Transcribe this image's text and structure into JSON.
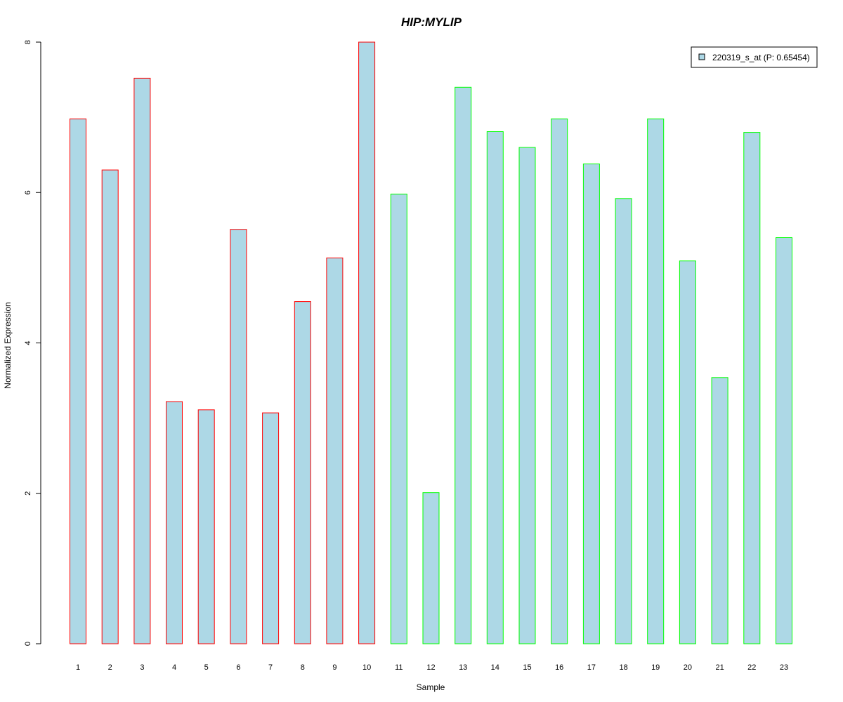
{
  "chart_data": {
    "type": "bar",
    "title": "HIP:MYLIP",
    "xlabel": "Sample",
    "ylabel": "Normalized Expression",
    "ylim": [
      0,
      8
    ],
    "yticks": [
      0,
      2,
      4,
      6,
      8
    ],
    "grid": false,
    "legend_position": "top-right",
    "categories": [
      "1",
      "2",
      "3",
      "4",
      "5",
      "6",
      "7",
      "8",
      "9",
      "10",
      "11",
      "12",
      "13",
      "14",
      "15",
      "16",
      "17",
      "18",
      "19",
      "20",
      "21",
      "22",
      "23"
    ],
    "series": [
      {
        "name": "220319_s_at (P: 0.65454)",
        "values": [
          6.98,
          6.3,
          7.52,
          3.22,
          3.11,
          5.51,
          3.07,
          4.55,
          5.13,
          8.0,
          5.98,
          2.01,
          7.4,
          6.81,
          6.6,
          6.98,
          6.38,
          5.92,
          6.98,
          5.09,
          3.54,
          6.8,
          5.4
        ],
        "fill": "#add8e6"
      }
    ],
    "groups": [
      {
        "samples": [
          1,
          2,
          3,
          4,
          5,
          6,
          7,
          8,
          9,
          10
        ],
        "border_color": "#ff0000"
      },
      {
        "samples": [
          11,
          12,
          13,
          14,
          15,
          16,
          17,
          18,
          19,
          20,
          21,
          22,
          23
        ],
        "border_color": "#00ff00"
      }
    ],
    "title_color": "#0000cd"
  }
}
